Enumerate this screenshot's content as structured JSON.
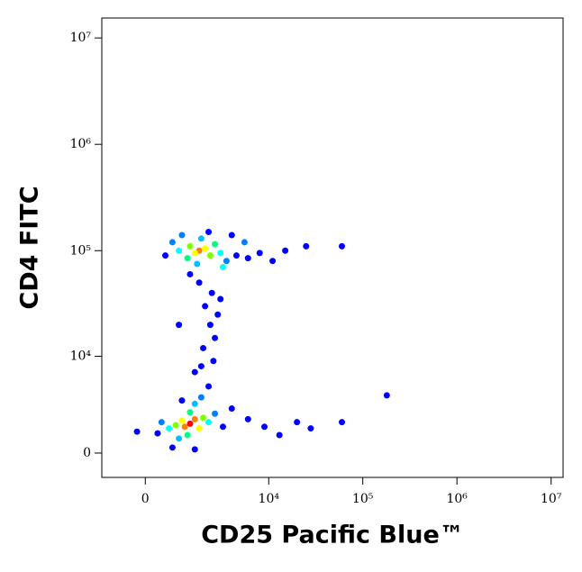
{
  "chart_data": {
    "type": "scatter",
    "xlabel": "CD25 Pacific Blue™",
    "ylabel": "CD4 FITC",
    "xscale": "biexponential",
    "yscale": "biexponential",
    "xlim": [
      -1250,
      13400000
    ],
    "ylim": [
      -1380,
      15400000
    ],
    "xticks": [
      0,
      {
        "value": 10000,
        "label": "10⁴"
      },
      {
        "value": 100000,
        "label": "10⁵"
      },
      {
        "value": 1000000,
        "label": "10⁶"
      },
      {
        "value": 10000000,
        "label": "10⁷"
      }
    ],
    "yticks": [
      0,
      {
        "value": 10000,
        "label": "10⁴"
      },
      {
        "value": 100000,
        "label": "10⁵"
      },
      {
        "value": 1000000,
        "label": "10⁶"
      },
      {
        "value": 10000000,
        "label": "10⁷"
      }
    ],
    "x": [
      1700,
      1500,
      2000,
      1300,
      2300,
      1200,
      2600,
      900,
      3000,
      1800,
      1600,
      700,
      3500,
      4500,
      6000,
      8000,
      11000,
      15000,
      25000,
      60000,
      500,
      2200,
      4000,
      1000,
      5500,
      3200,
      1700,
      2400,
      2000,
      2800,
      2300,
      2600,
      1900,
      2500,
      1500,
      2200,
      1300,
      3000,
      1800,
      900,
      1300,
      1100,
      1500,
      1000,
      1700,
      800,
      1900,
      1300,
      1200,
      600,
      2200,
      1500,
      900,
      400,
      2600,
      1800,
      300,
      3200,
      4000,
      6000,
      9000,
      13000,
      20000,
      28000,
      60000,
      180000,
      700,
      1500,
      -200,
      1000
    ],
    "values": [
      100000,
      95000,
      105000,
      110000,
      90000,
      85000,
      115000,
      100000,
      95000,
      130000,
      75000,
      120000,
      80000,
      90000,
      85000,
      95000,
      80000,
      100000,
      110000,
      110000,
      90000,
      150000,
      140000,
      140000,
      120000,
      70000,
      50000,
      40000,
      30000,
      25000,
      20000,
      15000,
      12000,
      9000,
      7000,
      5000,
      60000,
      35000,
      8000,
      20000,
      1700,
      1500,
      2000,
      1900,
      1400,
      1600,
      2100,
      2500,
      1000,
      1400,
      1800,
      3200,
      800,
      1800,
      2400,
      3800,
      1100,
      1500,
      2800,
      2000,
      1500,
      1000,
      1800,
      1400,
      1800,
      4000,
      300,
      200,
      1200,
      3500
    ],
    "colors": [
      "#ff8000",
      "#ffff00",
      "#ffff00",
      "#7fff00",
      "#7fff00",
      "#00ff80",
      "#00ff80",
      "#00ffff",
      "#00ffff",
      "#00c0ff",
      "#00c0ff",
      "#0080ff",
      "#0080ff",
      "#0000ff",
      "#0000ff",
      "#0000ff",
      "#0000ff",
      "#0000ff",
      "#0000ff",
      "#0000ff",
      "#0000ff",
      "#0000ff",
      "#0000ff",
      "#0080ff",
      "#0080ff",
      "#00ffff",
      "#0000ff",
      "#0000ff",
      "#0000ff",
      "#0000ff",
      "#0000ff",
      "#0000ff",
      "#0000ff",
      "#0000ff",
      "#0000ff",
      "#0000ff",
      "#0000ff",
      "#0000ff",
      "#0000ff",
      "#0000ff",
      "#ff0000",
      "#ff8000",
      "#ff8000",
      "#ffff00",
      "#ffff00",
      "#7fff00",
      "#7fff00",
      "#00ff80",
      "#00ff80",
      "#00ffff",
      "#00ffff",
      "#00c0ff",
      "#00c0ff",
      "#0080ff",
      "#0080ff",
      "#0080ff",
      "#0000ff",
      "#0000ff",
      "#0000ff",
      "#0000ff",
      "#0000ff",
      "#0000ff",
      "#0000ff",
      "#0000ff",
      "#0000ff",
      "#0000ff",
      "#0000ff",
      "#0000ff",
      "#0000ff",
      "#0000ff"
    ]
  }
}
